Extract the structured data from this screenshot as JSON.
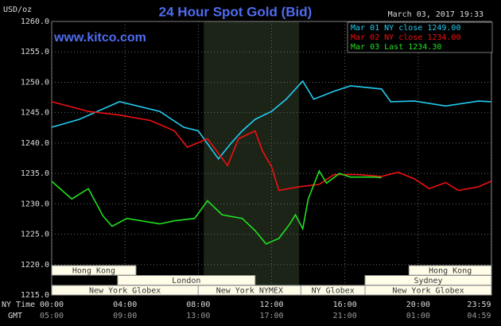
{
  "chart_data": {
    "type": "line",
    "title": "24 Hour Spot Gold (Bid)",
    "subtitle": "March 03, 2017 19:33",
    "ylabel": "USD/oz",
    "source": "www.kitco.com",
    "x_row_labels": [
      "NY Time",
      "GMT"
    ],
    "xlim": [
      0,
      24
    ],
    "xticks": [
      {
        "value": 0,
        "label": "00:00"
      },
      {
        "value": 4,
        "label": "04:00"
      },
      {
        "value": 8,
        "label": "08:00"
      },
      {
        "value": 12,
        "label": "12:00"
      },
      {
        "value": 16,
        "label": "16:00"
      },
      {
        "value": 20,
        "label": "20:00"
      },
      {
        "value": 23.98,
        "label": "23:59"
      }
    ],
    "gmt_labels": [
      "05:00",
      "09:00",
      "13:00",
      "17:00",
      "21:00",
      "01:00",
      "04:59"
    ],
    "ylim": [
      1215,
      1260
    ],
    "yticks": [
      {
        "value": 1215,
        "label": "1215.0"
      },
      {
        "value": 1220,
        "label": "1220.0"
      },
      {
        "value": 1225,
        "label": "1225.0"
      },
      {
        "value": 1230,
        "label": "1230.0"
      },
      {
        "value": 1235,
        "label": "1235.0"
      },
      {
        "value": 1240,
        "label": "1240.0"
      },
      {
        "value": 1245,
        "label": "1245.0"
      },
      {
        "value": 1250,
        "label": "1250.0"
      },
      {
        "value": 1255,
        "label": "1255.0"
      },
      {
        "value": 1260,
        "label": "1260.0"
      }
    ],
    "grid": true,
    "sessions": [
      "Hong Kong",
      "Hong Kong",
      "London",
      "Sydney",
      "New York Globex",
      "New York NYMEX",
      "NY Globex",
      "New York Globex"
    ],
    "series": [
      {
        "name": "Mar 01 NY close 1249.00",
        "color": "#22ccf0",
        "x": [
          0,
          1.5,
          3.7,
          5.9,
          7.2,
          8,
          9.1,
          9.8,
          10.4,
          11.1,
          12,
          12.8,
          13.7,
          14.3,
          15.4,
          16.3,
          18,
          18.5,
          19.8,
          21.5,
          23.3,
          23.98
        ],
        "values": [
          1242.6,
          1243.9,
          1246.8,
          1245.2,
          1242.6,
          1242,
          1237.4,
          1240,
          1242,
          1243.9,
          1245.2,
          1247.2,
          1250.2,
          1247.2,
          1248.5,
          1249.4,
          1248.9,
          1246.8,
          1246.9,
          1246.1,
          1246.9,
          1246.8
        ]
      },
      {
        "name": "Mar 02 NY close 1234.00",
        "color": "#f01010",
        "x": [
          0,
          2,
          3.7,
          5.4,
          6.7,
          7.4,
          8.5,
          9.6,
          10.2,
          11.1,
          11.5,
          12,
          12.4,
          13.5,
          14.6,
          15.4,
          16.7,
          18,
          18.9,
          19.8,
          20.6,
          21.5,
          22.2,
          23.3,
          23.98
        ],
        "values": [
          1246.8,
          1245.2,
          1244.6,
          1243.7,
          1242,
          1239.3,
          1240.7,
          1236.3,
          1240.7,
          1242,
          1238.7,
          1236.1,
          1232.2,
          1232.8,
          1233.2,
          1234.8,
          1234.8,
          1234.5,
          1235.2,
          1234.1,
          1232.5,
          1233.5,
          1232.2,
          1232.8,
          1233.7
        ]
      },
      {
        "name": "Mar 03 Last 1234.30",
        "color": "#22e022",
        "x": [
          0,
          1.1,
          2,
          2.8,
          3.3,
          4.1,
          5.9,
          6.7,
          7.8,
          8.5,
          9.3,
          10.4,
          11.1,
          11.7,
          12.4,
          13,
          13.3,
          13.7,
          14,
          14.6,
          15,
          15.7,
          16.3,
          17.6,
          18
        ],
        "values": [
          1233.7,
          1230.8,
          1232.5,
          1228,
          1226.3,
          1227.6,
          1226.7,
          1227.2,
          1227.6,
          1230.5,
          1228.2,
          1227.6,
          1225.6,
          1223.4,
          1224.3,
          1226.7,
          1228.2,
          1225.9,
          1230.8,
          1235.4,
          1233.4,
          1235,
          1234.4,
          1234.4,
          1234.3
        ]
      }
    ]
  }
}
